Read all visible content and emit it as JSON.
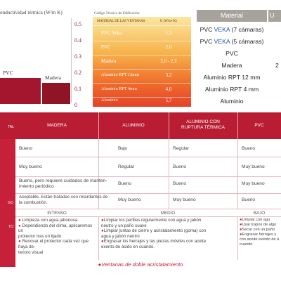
{
  "chart": {
    "title": "onductividad térmica (W/m K)",
    "ticks": [
      "0.5",
      "0.4",
      "0.3",
      "0.2",
      "0.1",
      "0"
    ],
    "bars": [
      {
        "label": "PVC",
        "value": 0.16,
        "color": "#a3162e"
      },
      {
        "label": "Madera",
        "value": 0.13,
        "color": "#8f1425"
      }
    ]
  },
  "chart_data": {
    "type": "bar",
    "categories": [
      "PVC",
      "Madera"
    ],
    "values": [
      0.16,
      0.13
    ],
    "title": "onductividad térmica (W/m K)",
    "ylim": [
      0,
      0.5
    ]
  },
  "u_table": {
    "title": "Código Técnico de Edificación",
    "header_material": "MATERIAL DE LAS VENTANAS",
    "header_u": "U (W/m² K)",
    "rows": [
      {
        "material": "PVC Veka",
        "u": "1,3"
      },
      {
        "material": "PVC",
        "u": "2,0"
      },
      {
        "material": "Madera",
        "u": "2,0 - 2,2"
      },
      {
        "material": "Aluminio RPT 12mm",
        "u": "3,2"
      },
      {
        "material": "Aluminio RPT 4mm",
        "u": "4,0"
      },
      {
        "material": "Aluminio",
        "u": "5,7"
      }
    ]
  },
  "materials": {
    "header": "Material",
    "header2": "U",
    "rows": [
      {
        "pre": "PVC ",
        "brand": "VEKA",
        "post": " (7 cámaras)",
        "val": ""
      },
      {
        "pre": "PVC ",
        "brand": "VEKA",
        "post": " (5 cámaras)",
        "val": ""
      },
      {
        "pre": "PVC",
        "brand": "",
        "post": "",
        "val": ""
      },
      {
        "pre": "Madera",
        "brand": "",
        "post": "",
        "val": "2"
      },
      {
        "pre": "Aluminio RPT 12 mm",
        "brand": "",
        "post": "",
        "val": ""
      },
      {
        "pre": "Aluminio RPT 4 mm",
        "brand": "",
        "post": "",
        "val": ""
      },
      {
        "pre": "Aluminio",
        "brand": "",
        "post": "",
        "val": ""
      }
    ]
  },
  "comparison": {
    "left_header": "TAL",
    "columns": [
      "MADERA",
      "ALUMINIO",
      "ALUMINIO  CON\nRUPTURA TÉRMICA",
      "PVC"
    ],
    "row_labels": [
      "",
      "",
      "",
      "GO",
      "TO"
    ],
    "rows": [
      [
        "Bueno",
        "Bajo",
        "Regular",
        "Bueno"
      ],
      [
        "Muy bueno",
        "Regular",
        "Bueno",
        "Muy bueno"
      ],
      [
        "Bueno, pero requiere cuidados de manten-\nimiento periódico",
        "Bueno",
        "Bueno",
        "Muy bueno"
      ],
      [
        "Aceptable. Están tratadas con retardantes de\nla combustión.",
        "Muy bueno",
        "Muy bueno",
        "Bueno"
      ]
    ],
    "levels": [
      "INTENSO",
      "MEDIO",
      "BAJO"
    ],
    "maintenance": [
      [
        "Limpieza con agua jabonosa",
        "Dependiendo del clima, aplicaremos un\nprotector tras un lijado:",
        "Renovar el protector cada vez que haya de-\nterioro visual"
      ],
      [
        "Limpiar los perfiles regularmente con agua y jabón\nneutro y un paño suave",
        "Limpiar juntas de cierre y acristalamiento (goma) con\nagua y jabón neutro",
        "Engrasar los herrajes y las piezas móviles con aceite\nexento de ácido en cuando."
      ],
      [
        "Limpiar con agu",
        "Usar trapos de algo",
        "Secar con un paño",
        "Engrasar herrajes y\ncon aceite exento de á\ncuando."
      ]
    ]
  },
  "footer": "Ventanas  de doble acristalamiento"
}
